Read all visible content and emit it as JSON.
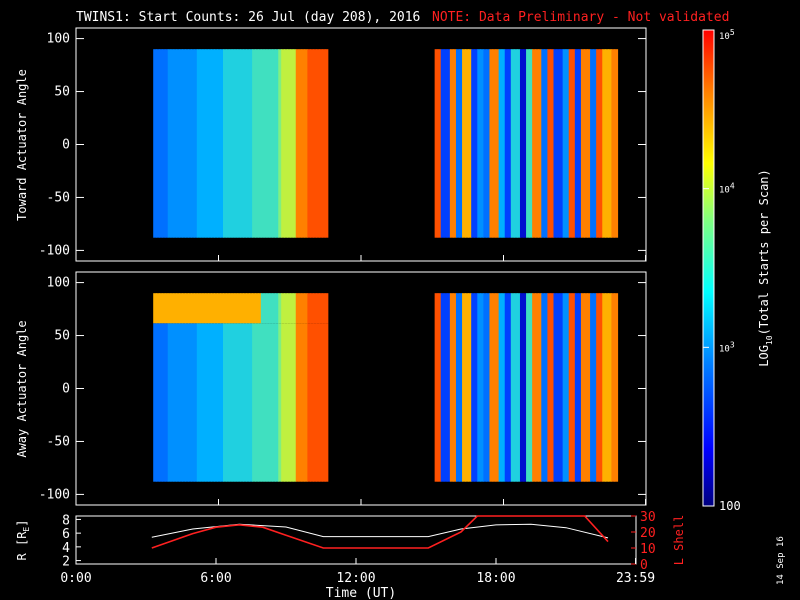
{
  "title": {
    "main": "TWINS1: Start Counts: 26 Jul (day 208), 2016",
    "note": "NOTE: Data Preliminary - Not validated"
  },
  "colors": {
    "note": "#ff2020",
    "axis": "#ffffff",
    "l_shell": "#ff2020",
    "r_re": "#ffffff",
    "background": "#000000"
  },
  "colorbar": {
    "label_html": "LOG",
    "label_sub": "10",
    "label_rest": "(Total Starts per Scan)",
    "ticks": [
      {
        "value": 100,
        "text": "100"
      },
      {
        "value": 1000,
        "text_base": "10",
        "text_exp": "3"
      },
      {
        "value": 10000,
        "text_base": "10",
        "text_exp": "4"
      },
      {
        "value": 100000,
        "text_base": "10",
        "text_exp": "5"
      }
    ],
    "scale": "log",
    "range": [
      100,
      100000
    ]
  },
  "date_stamp": "14 Sep 16",
  "chart_data": [
    {
      "type": "heatmap",
      "ylabel": "Toward Actuator Angle",
      "ylim": [
        -110,
        110
      ],
      "yticks": [
        -100,
        -50,
        0,
        50,
        100
      ],
      "xlim_hours": [
        0,
        24
      ],
      "coverage_hours": [
        [
          3.25,
          10.6
        ],
        [
          15.1,
          22.8
        ]
      ],
      "description_note": "",
      "angle_range": [
        -88,
        90
      ]
    },
    {
      "type": "heatmap",
      "ylabel": "Away Actuator Angle",
      "ylim": [
        -110,
        110
      ],
      "yticks": [
        -100,
        -50,
        0,
        50,
        100
      ],
      "xlim_hours": [
        0,
        24
      ],
      "coverage_hours": [
        [
          3.25,
          10.6
        ],
        [
          15.1,
          22.8
        ]
      ],
      "angle_range": [
        -88,
        90
      ]
    },
    {
      "type": "line",
      "xlabel": "Time (UT)",
      "ylabel_left": "R [R",
      "ylabel_left_sub": "E",
      "ylabel_left_end": "]",
      "ylabel_right": "L Shell",
      "ylim_left": [
        1.5,
        8.5
      ],
      "yticks_left": [
        2,
        4,
        6,
        8
      ],
      "ylim_right": [
        0,
        30
      ],
      "yticks_right": [
        0,
        10,
        20,
        30
      ],
      "xticks": [
        "0:00",
        "6:00",
        "12:00",
        "18:00",
        "23:59"
      ],
      "xtick_hours": [
        0,
        6,
        12,
        18,
        23.98
      ],
      "series": [
        {
          "axis": "left",
          "x": [
            3.25,
            5,
            7,
            9,
            10.6,
            15.1,
            16.5,
            18,
            19.5,
            21,
            22.8
          ],
          "y": [
            5.4,
            6.6,
            7.3,
            6.9,
            5.5,
            5.5,
            6.6,
            7.2,
            7.3,
            6.8,
            5.3
          ]
        },
        {
          "axis": "right",
          "x": [
            3.25,
            5,
            6,
            7,
            8,
            9,
            10.6,
            15.1,
            16.5,
            17.2,
            21.8,
            22.8
          ],
          "y": [
            10,
            19,
            23,
            24.5,
            23,
            18,
            10,
            10,
            20,
            30,
            30,
            14
          ]
        }
      ]
    }
  ]
}
